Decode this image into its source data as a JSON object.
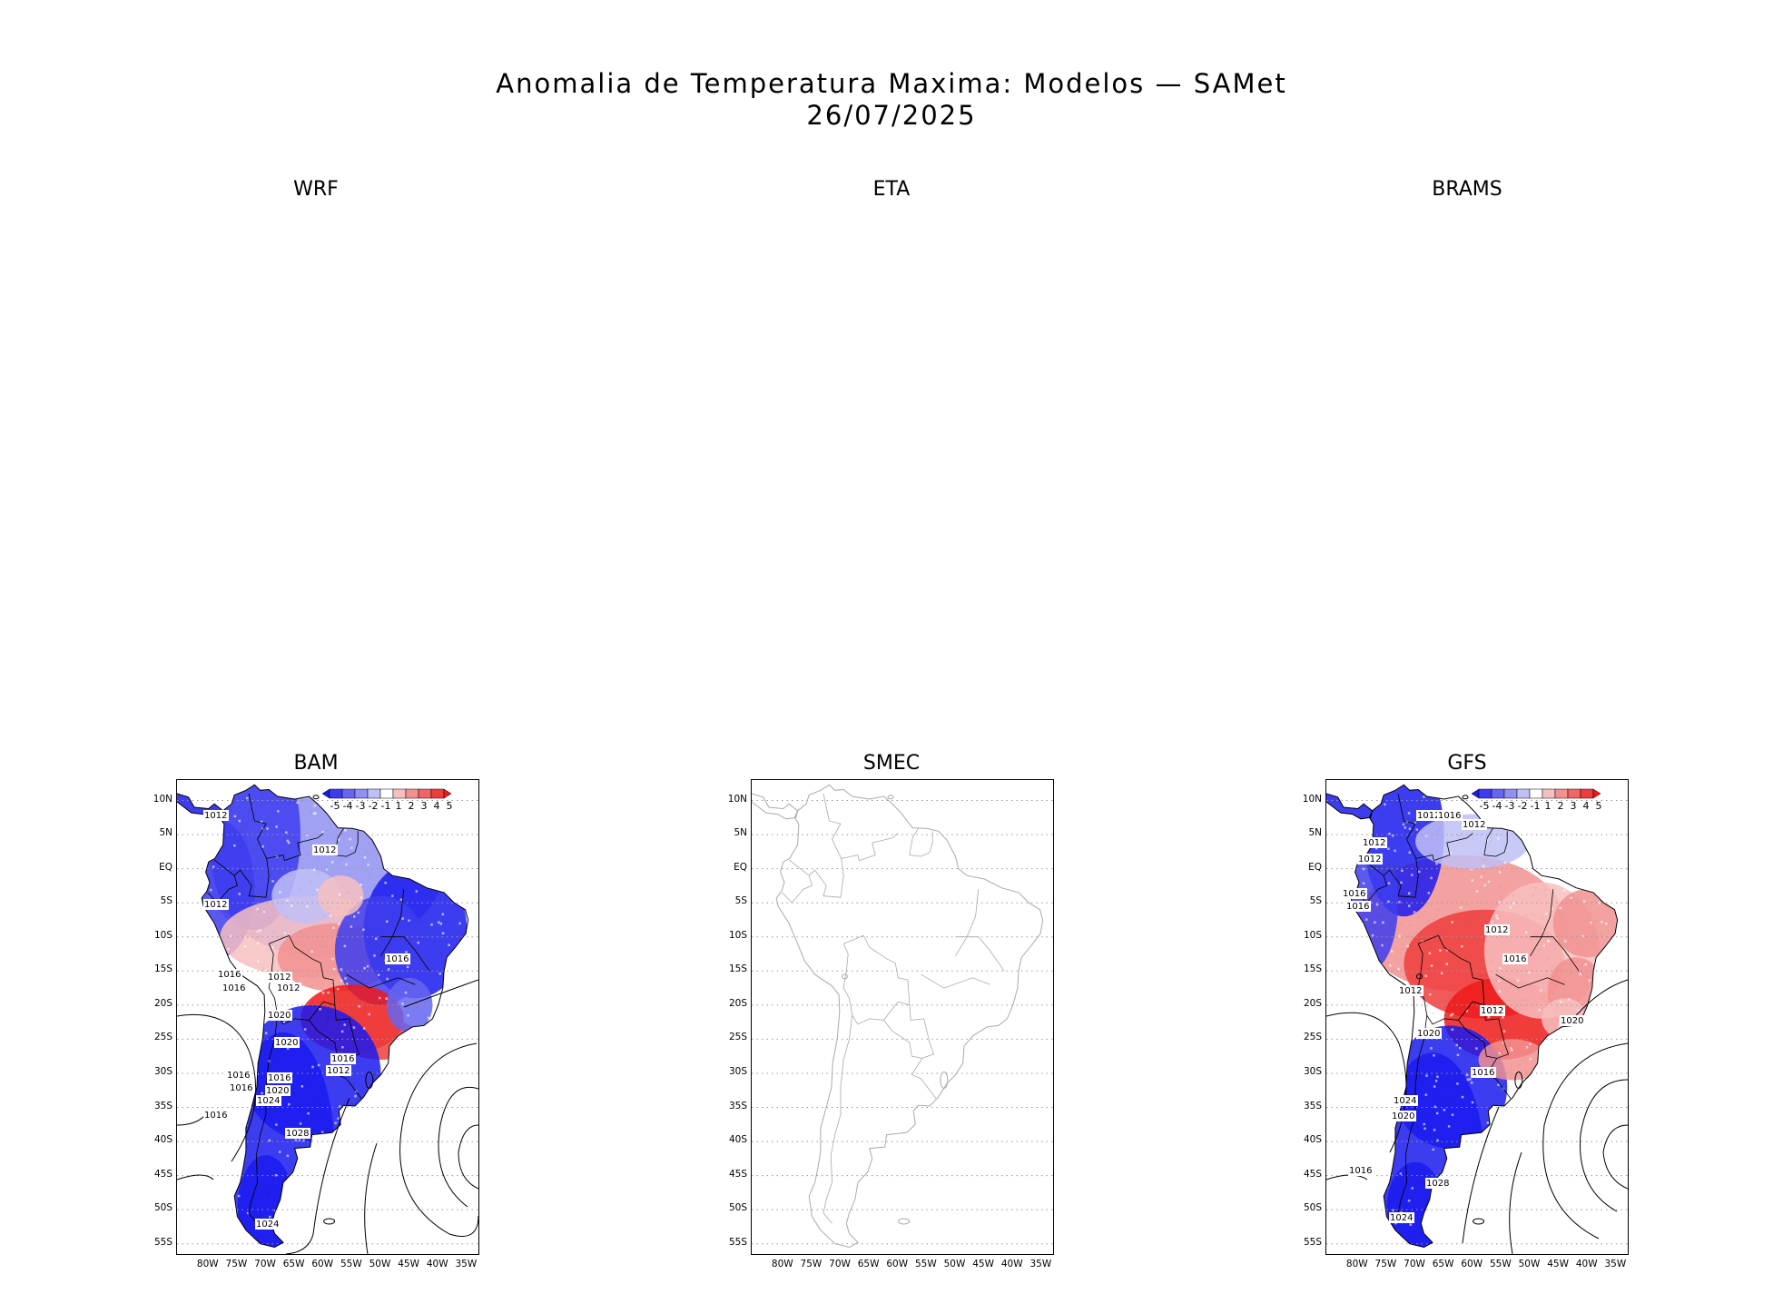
{
  "title": {
    "line1": "Anomalia de Temperatura Maxima: Modelos — SAMet",
    "line2": "26/07/2025"
  },
  "panels_top": [
    {
      "name": "WRF"
    },
    {
      "name": "ETA"
    },
    {
      "name": "BRAMS"
    }
  ],
  "panels_bottom": [
    {
      "name": "BAM",
      "has_data": true
    },
    {
      "name": "SMEC",
      "has_data": false
    },
    {
      "name": "GFS",
      "has_data": true
    }
  ],
  "lat_ticks": [
    "10N",
    "5N",
    "EQ",
    "5S",
    "10S",
    "15S",
    "20S",
    "25S",
    "30S",
    "35S",
    "40S",
    "45S",
    "50S",
    "55S"
  ],
  "lon_ticks": [
    "80W",
    "75W",
    "70W",
    "65W",
    "60W",
    "55W",
    "50W",
    "45W",
    "40W",
    "35W"
  ],
  "legend": {
    "labels": [
      "-5",
      "-4",
      "-3",
      "-2",
      "-1",
      "1",
      "2",
      "3",
      "4",
      "5"
    ],
    "colors": [
      "#1a1aee",
      "#3d3dee",
      "#6565f0",
      "#9090f2",
      "#c0c0f7",
      "#ffffff",
      "#f7c0c0",
      "#f29090",
      "#f06565",
      "#ee3d3d",
      "#ee1a1a"
    ]
  },
  "isobars": {
    "BAM": [
      "1012",
      "1012",
      "1012",
      "1016",
      "1016",
      "1012",
      "1012",
      "1016",
      "1016",
      "1020",
      "1020",
      "1012",
      "1016",
      "1016",
      "1020",
      "1024",
      "1016",
      "1028",
      "1016",
      "1024"
    ],
    "GFS": [
      "1012",
      "1012",
      "1012",
      "1016",
      "1016",
      "1012",
      "1016",
      "1012",
      "1016",
      "1012",
      "1012",
      "1020",
      "1020",
      "1016",
      "1024",
      "1020",
      "1016",
      "1028",
      "1024"
    ]
  },
  "colors": {
    "warm": "#ee2020",
    "cold": "#2020ee",
    "coast_gray": "#aaaaaa"
  }
}
